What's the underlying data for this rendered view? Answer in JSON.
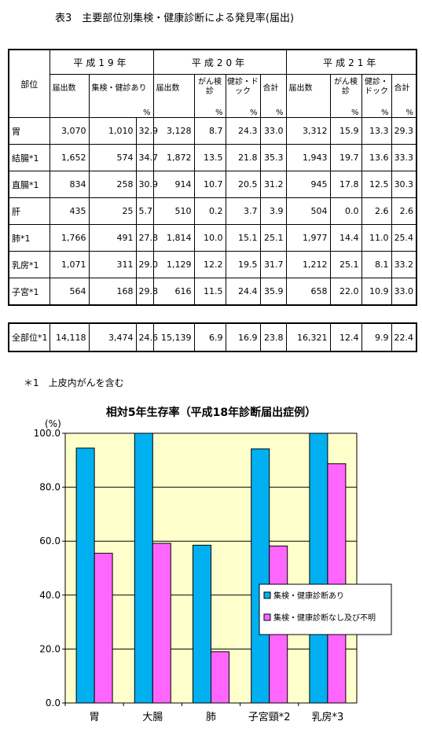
{
  "table_title": "表3　主要部位別集検・健康診断による発見率(届出)",
  "table": {
    "part_header": "部位",
    "years": [
      "平成19年",
      "平成20年",
      "平成21年"
    ],
    "h19_cols": [
      "届出数",
      "集検・健診あり",
      "%"
    ],
    "h20_cols": {
      "reports": "届出数",
      "screen": "がん検診",
      "dock": "健診・ドック",
      "total": "合計",
      "pct": "%"
    },
    "h21_cols": {
      "reports": "届出数",
      "screen": "がん検診",
      "dock": "健診・ドック",
      "total": "合計",
      "pct": "%"
    },
    "rows": [
      [
        "胃",
        "3,070",
        "1,010",
        "32.9",
        "3,128",
        "8.7",
        "24.3",
        "33.0",
        "3,312",
        "15.9",
        "13.3",
        "29.3"
      ],
      [
        "結腸*1",
        "1,652",
        "574",
        "34.7",
        "1,872",
        "13.5",
        "21.8",
        "35.3",
        "1,943",
        "19.7",
        "13.6",
        "33.3"
      ],
      [
        "直腸*1",
        "834",
        "258",
        "30.9",
        "914",
        "10.7",
        "20.5",
        "31.2",
        "945",
        "17.8",
        "12.5",
        "30.3"
      ],
      [
        "肝",
        "435",
        "25",
        "5.7",
        "510",
        "0.2",
        "3.7",
        "3.9",
        "504",
        "0.0",
        "2.6",
        "2.6"
      ],
      [
        "肺*1",
        "1,766",
        "491",
        "27.8",
        "1,814",
        "10.0",
        "15.1",
        "25.1",
        "1,977",
        "14.4",
        "11.0",
        "25.4"
      ],
      [
        "乳房*1",
        "1,071",
        "311",
        "29.0",
        "1,129",
        "12.2",
        "19.5",
        "31.7",
        "1,212",
        "25.1",
        "8.1",
        "33.2"
      ],
      [
        "子宮*1",
        "564",
        "168",
        "29.8",
        "616",
        "11.5",
        "24.4",
        "35.9",
        "658",
        "22.0",
        "10.9",
        "33.0"
      ]
    ],
    "total_row": [
      "全部位*1",
      "14,118",
      "3,474",
      "24.6",
      "15,139",
      "6.9",
      "16.9",
      "23.8",
      "16,321",
      "12.4",
      "9.9",
      "22.4"
    ]
  },
  "footnote": "＊1　上皮内がんを含む",
  "chart_data": {
    "type": "bar",
    "title": "相対5年生存率（平成18年診断届出症例）",
    "ylabel": "(%)",
    "ylim": [
      0,
      100
    ],
    "yticks": [
      "0.0",
      "20.0",
      "40.0",
      "60.0",
      "80.0",
      "100.0"
    ],
    "categories": [
      "胃",
      "大腸",
      "肺",
      "子宮頸*2",
      "乳房*3"
    ],
    "series": [
      {
        "name": "集検・健康診断あり",
        "color": "#00b0f0",
        "values": [
          94.5,
          100,
          58.5,
          94.2,
          100
        ]
      },
      {
        "name": "集検・健康診断なし及び不明",
        "color": "#ff66ff",
        "values": [
          55.5,
          59.2,
          19,
          58.2,
          88.7
        ]
      }
    ],
    "legend_position": "right",
    "plot_background": "#ffffcc",
    "grid": true
  }
}
